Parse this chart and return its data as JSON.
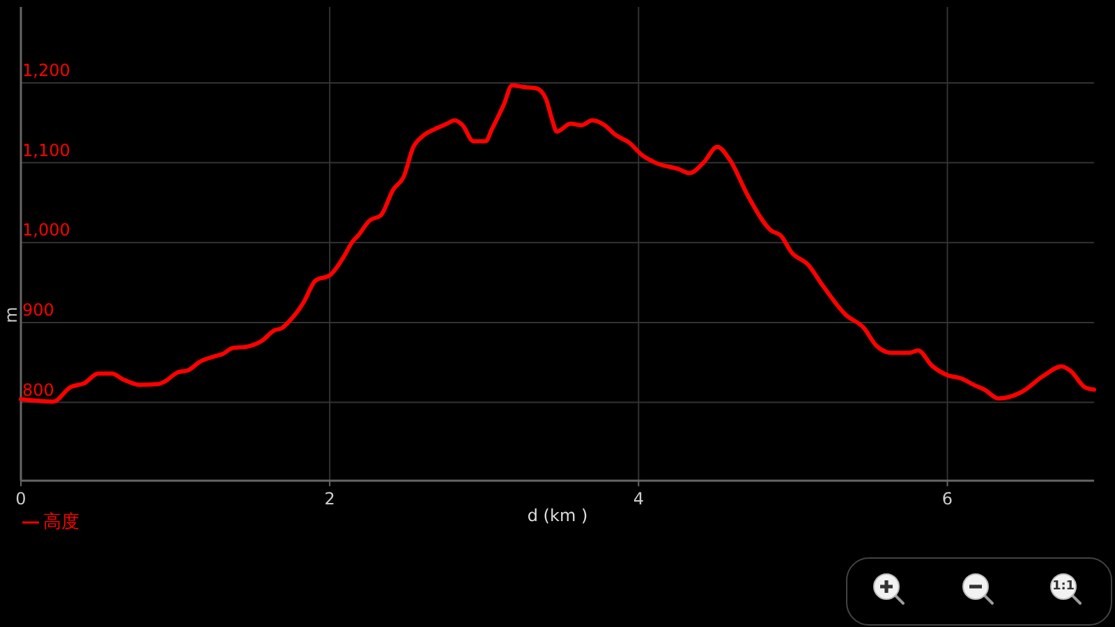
{
  "chart_data": {
    "type": "line",
    "xlabel": "d (km )",
    "ylabel": "m",
    "xlim": [
      0,
      6.95
    ],
    "ylim": [
      702,
      1295
    ],
    "xticks": [
      0,
      2,
      4,
      6
    ],
    "yticks": [
      {
        "value": 800,
        "label": "800"
      },
      {
        "value": 900,
        "label": "900"
      },
      {
        "value": 1000,
        "label": "1,000"
      },
      {
        "value": 1100,
        "label": "1,100"
      },
      {
        "value": 1200,
        "label": "1,200"
      }
    ],
    "grid": true,
    "legend": "bottom left",
    "annotations": [
      "1:1"
    ],
    "series": [
      {
        "name": "高度",
        "color": "#ff0000",
        "x": [
          0,
          0.21,
          0.32,
          0.41,
          0.5,
          0.59,
          0.66,
          0.77,
          0.89,
          0.93,
          1.02,
          1.08,
          1.16,
          1.26,
          1.31,
          1.37,
          1.47,
          1.56,
          1.64,
          1.69,
          1.74,
          1.83,
          1.91,
          2.0,
          2.09,
          2.15,
          2.18,
          2.26,
          2.33,
          2.41,
          2.48,
          2.54,
          2.6,
          2.69,
          2.75,
          2.81,
          2.86,
          2.93,
          3.01,
          3.05,
          3.13,
          3.18,
          3.25,
          3.34,
          3.4,
          3.44,
          3.47,
          3.56,
          3.63,
          3.7,
          3.78,
          3.85,
          3.94,
          4.02,
          4.11,
          4.26,
          4.33,
          4.42,
          4.51,
          4.59,
          4.71,
          4.86,
          4.92,
          4.99,
          5.1,
          5.19,
          5.34,
          5.46,
          5.54,
          5.64,
          5.75,
          5.81,
          5.9,
          6.0,
          6.09,
          6.17,
          6.24,
          6.33,
          6.48,
          6.62,
          6.74,
          6.8,
          6.89,
          6.95
        ],
        "values": [
          804,
          801,
          819,
          824,
          836,
          836,
          829,
          822,
          823,
          826,
          838,
          840,
          851,
          858,
          861,
          868,
          870,
          877,
          890,
          893,
          902,
          925,
          953,
          959,
          982,
          1002,
          1008,
          1028,
          1034,
          1066,
          1083,
          1119,
          1133,
          1143,
          1148,
          1153,
          1147,
          1127,
          1127,
          1142,
          1174,
          1197,
          1195,
          1193,
          1180,
          1154,
          1139,
          1149,
          1147,
          1153,
          1147,
          1135,
          1125,
          1110,
          1100,
          1092,
          1087,
          1100,
          1120,
          1104,
          1058,
          1015,
          1009,
          988,
          972,
          947,
          910,
          893,
          871,
          862,
          862,
          865,
          846,
          834,
          830,
          822,
          816,
          805,
          813,
          833,
          845,
          839,
          819,
          816
        ]
      }
    ]
  }
}
